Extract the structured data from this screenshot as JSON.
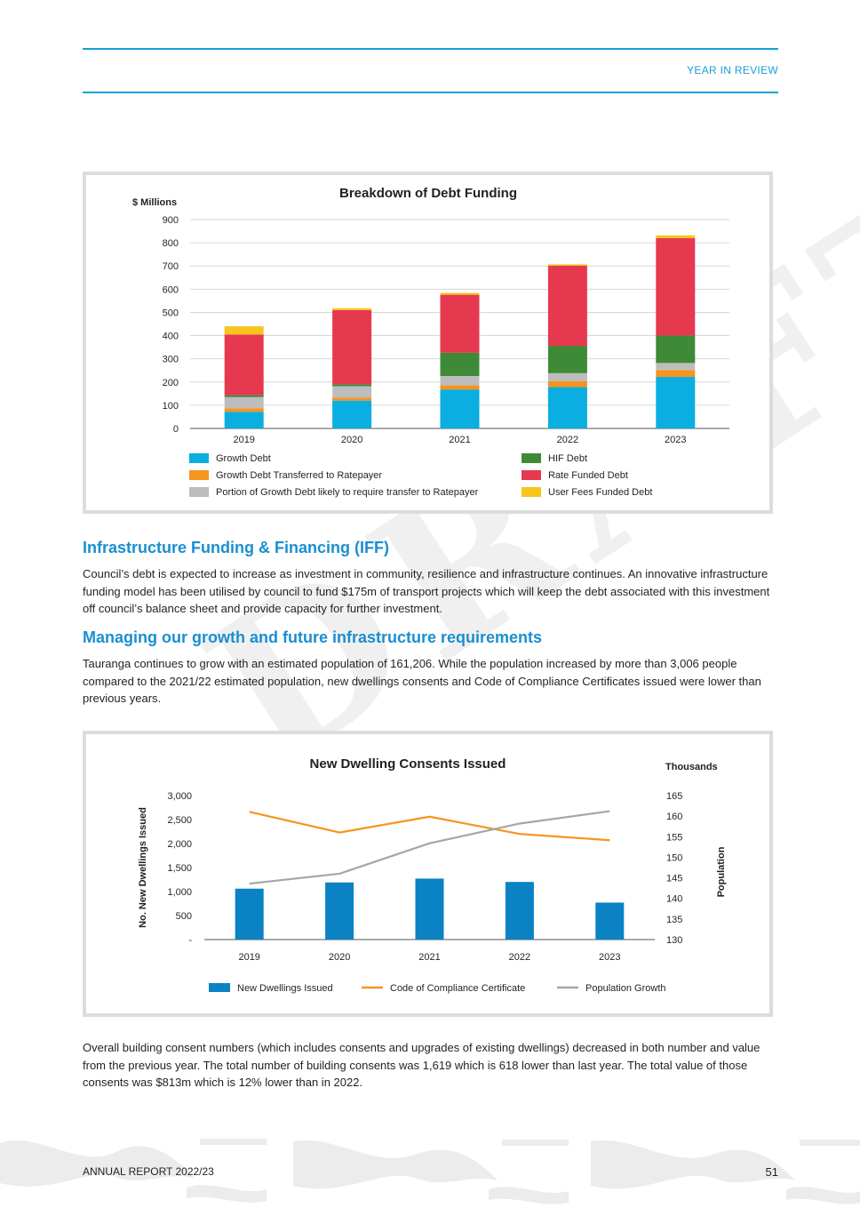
{
  "header": {
    "section": "YEAR IN REVIEW"
  },
  "watermark": "DRAFT",
  "debt_chart": {
    "title": "Breakdown of Debt Funding",
    "ylabel": "$ Millions"
  },
  "iff": {
    "heading": "Infrastructure Funding & Financing (IFF)",
    "body": "Council’s debt is expected to increase as investment in community, resilience and infrastructure continues.  An innovative infrastructure funding model has been utilised by council to fund $175m of transport projects which will keep the debt associated with this investment off council’s balance sheet and provide capacity for further investment."
  },
  "growth": {
    "heading": "Managing our growth and future infrastructure requirements",
    "body": "Tauranga continues to grow with an estimated population of 161,206.  While the population increased by more than 3,006 people compared to the 2021/22 estimated population, new dwellings consents and Code of Compliance Certificates issued were lower than previous years."
  },
  "dwelling_chart": {
    "title": "New Dwelling Consents Issued",
    "left_axis_label": "No. New Dwellings Issued",
    "right_axis_unit": "Thousands",
    "right_axis_label": "Population"
  },
  "consents": {
    "body": "Overall building consent numbers (which includes consents and upgrades of existing dwellings) decreased in both number and value from the previous year.  The total number of building consents was 1,619 which is 618 lower than last year.  The total value of those consents was $813m which is 12% lower than in 2022."
  },
  "footer": {
    "left": "ANNUAL REPORT 2022/23",
    "page": "51"
  },
  "chart_data": [
    {
      "type": "bar",
      "stacked": true,
      "title": "Breakdown of Debt Funding",
      "ylabel": "$ Millions",
      "xlabel": "",
      "ylim": [
        0,
        900
      ],
      "yticks": [
        0,
        100,
        200,
        300,
        400,
        500,
        600,
        700,
        800,
        900
      ],
      "grid": true,
      "legend_position": "bottom",
      "categories": [
        "2019",
        "2020",
        "2021",
        "2022",
        "2023"
      ],
      "series": [
        {
          "name": "Growth Debt",
          "color": "#0aaee0",
          "values": [
            72,
            120,
            168,
            178,
            222
          ]
        },
        {
          "name": "Growth Debt Transferred to Ratepayer",
          "color": "#f7941d",
          "values": [
            15,
            12,
            18,
            25,
            30
          ]
        },
        {
          "name": "Portion of Growth Debt likely to require transfer to Ratepayer",
          "color": "#bdbdbd",
          "values": [
            48,
            50,
            40,
            35,
            30
          ]
        },
        {
          "name": "HIF Debt",
          "color": "#3f8a37",
          "values": [
            8,
            8,
            100,
            118,
            118
          ]
        },
        {
          "name": "Rate Funded Debt",
          "color": "#e63950",
          "values": [
            262,
            320,
            250,
            345,
            420
          ]
        },
        {
          "name": "User Fees Funded Debt",
          "color": "#f7c51c",
          "values": [
            35,
            8,
            8,
            6,
            12
          ]
        }
      ]
    },
    {
      "type": "bar",
      "title": "New Dwelling Consents Issued",
      "ylabel": "No. New Dwellings Issued",
      "y2label": "Population",
      "y2unit": "Thousands",
      "ylim": [
        0,
        3000
      ],
      "y2lim": [
        130,
        165
      ],
      "yticks": [
        "-",
        "500",
        "1,000",
        "1,500",
        "2,000",
        "2,500",
        "3,000"
      ],
      "y2ticks": [
        "130",
        "135",
        "140",
        "145",
        "150",
        "155",
        "160",
        "165"
      ],
      "grid": false,
      "legend_position": "bottom",
      "categories": [
        "2019",
        "2020",
        "2021",
        "2022",
        "2023"
      ],
      "series": [
        {
          "name": "New Dwellings Issued",
          "kind": "bar",
          "axis": "left",
          "color": "#0a82c4",
          "values": [
            1060,
            1190,
            1270,
            1200,
            770
          ]
        },
        {
          "name": "Code of Compliance Certificate",
          "kind": "line",
          "axis": "left",
          "color": "#f7941d",
          "values": [
            2660,
            2230,
            2560,
            2200,
            2070
          ]
        },
        {
          "name": "Population Growth",
          "kind": "line",
          "axis": "right",
          "color": "#a6a6a6",
          "values": [
            143.6,
            146.0,
            153.4,
            158.2,
            161.2
          ]
        }
      ]
    }
  ]
}
